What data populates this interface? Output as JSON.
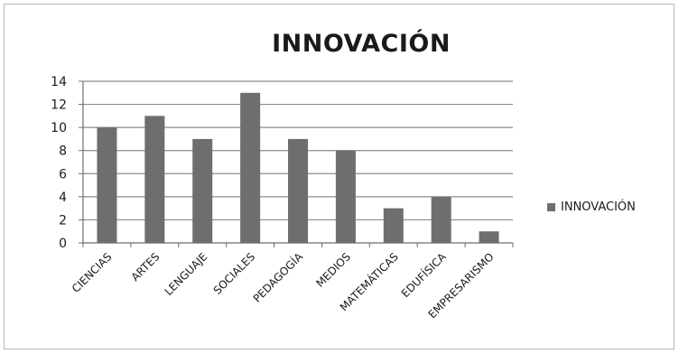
{
  "chart_data": {
    "type": "bar",
    "title": "INNOVACIÓN",
    "categories": [
      "CIENCIAS",
      "ARTES",
      "LENGUAJE",
      "SOCIALES",
      "PEDAGOGÍA",
      "MEDIOS",
      "MATEMÁTICAS",
      "EDUFÍSICA",
      "EMPRESARISMO"
    ],
    "series": [
      {
        "name": "INNOVACIÓN",
        "values": [
          10,
          11,
          9,
          13,
          9,
          8,
          3,
          4,
          1
        ]
      }
    ],
    "ylim": [
      0,
      14
    ],
    "yticks": [
      "0",
      "2",
      "4",
      "6",
      "8",
      "10",
      "12",
      "14"
    ],
    "grid": true,
    "legend_position": "right",
    "bar_color": "#6e6e6e"
  }
}
